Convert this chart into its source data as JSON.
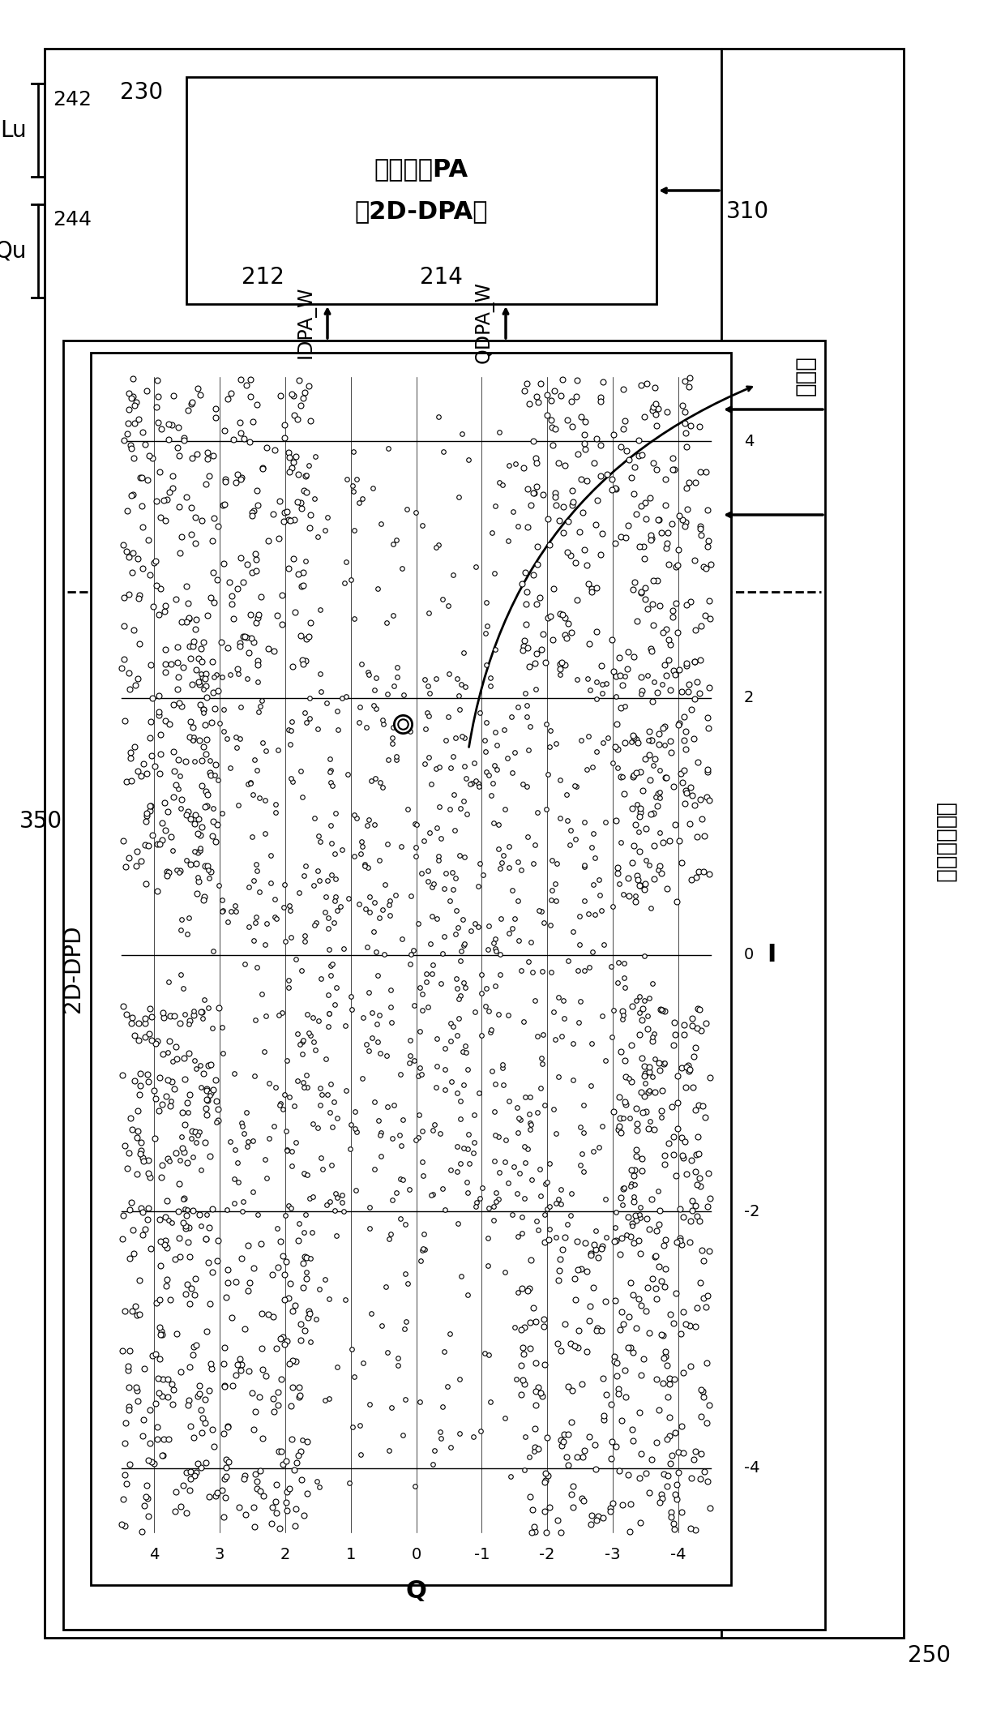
{
  "bg_color": "#ffffff",
  "box230_line1": "二维数字PA",
  "box230_line2": "（2D-DPA）",
  "mapper_label": "映射器",
  "dpd_label": "2D-DPD",
  "label_230": "230",
  "label_310": "310",
  "label_212": "212",
  "label_214": "214",
  "label_IDPA_W": "IDPA_W",
  "label_QDPA_W": "QDPA_W",
  "label_250": "250",
  "label_350": "350",
  "label_Lu": "Lu",
  "label_Qu": "Qu",
  "label_242": "242",
  "label_244": "244",
  "label_clk": "时钟脉冲信号",
  "xlabel": "Q",
  "ylabel": "I",
  "q_ticks": [
    4,
    3,
    2,
    1,
    0,
    -1,
    -2,
    -3,
    -4
  ],
  "i_ticks": [
    4,
    2,
    0,
    -2,
    -4
  ]
}
